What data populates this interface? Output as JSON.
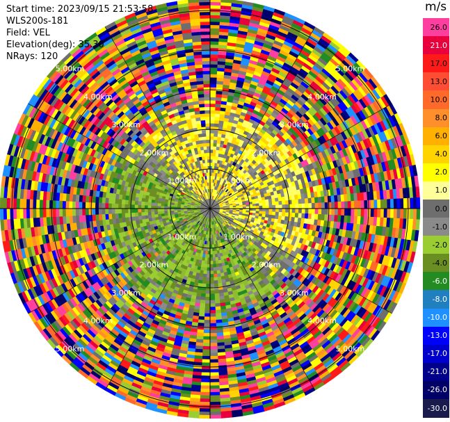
{
  "info": {
    "start_time": "Start time: 2023/09/15 21:53:58",
    "instrument": "WLS200s-181",
    "field": "Field: VEL",
    "elevation": "Elevation(deg): 35.30",
    "nrays": "NRays: 120"
  },
  "chart_data": {
    "type": "heatmap",
    "projection": "polar PPI",
    "field": "VEL",
    "nrays": 120,
    "range_labels": [
      "1.00km",
      "2.00km",
      "3.00km",
      "4.00km",
      "5.00km"
    ],
    "range_ring_km": [
      1,
      2,
      3,
      4,
      5
    ],
    "max_range_km": 5.3,
    "colorbar": {
      "unit": "m/s",
      "ticks": [
        "26.0",
        "21.0",
        "17.0",
        "13.0",
        "10.0",
        "8.0",
        "6.0",
        "4.0",
        "2.0",
        "1.0",
        "0.0",
        "-1.0",
        "-2.0",
        "-4.0",
        "-6.0",
        "-8.0",
        "-10.0",
        "-13.0",
        "-17.0",
        "-21.0",
        "-26.0",
        "-30.0"
      ],
      "colors": [
        "#ff3fa0",
        "#e8003c",
        "#ff1a1a",
        "#ff4d33",
        "#ff6a2a",
        "#ff8f2a",
        "#ffb000",
        "#ffd400",
        "#ffff00",
        "#ffff99",
        "#6e6e6e",
        "#8a8a8a",
        "#9acd32",
        "#6b8e23",
        "#228b22",
        "#1f7fbf",
        "#1e90ff",
        "#0000ff",
        "#0000cd",
        "#00008b",
        "#000066",
        "#1a1a4d"
      ],
      "label_colors": [
        "#000000",
        "#ffffff",
        "#000000",
        "#000000",
        "#000000",
        "#000000",
        "#000000",
        "#000000",
        "#000000",
        "#000000",
        "#000000",
        "#000000",
        "#000000",
        "#000000",
        "#ffffff",
        "#ffffff",
        "#ffffff",
        "#ffffff",
        "#ffffff",
        "#ffffff",
        "#ffffff",
        "#ffffff"
      ]
    },
    "pattern": {
      "inner_km": 2.4,
      "noise_km": 3.7,
      "positive_sector": "north-east",
      "negative_sector": "south-west",
      "colors": {
        "positive": [
          "#ffff00",
          "#ffd400",
          "#ffff66"
        ],
        "negative": [
          "#9acd32",
          "#6b8e23",
          "#8fbc2f"
        ],
        "strong_negative": "#228b22",
        "zero": [
          "#6e6e6e",
          "#8a8a8a",
          "#7c7c7c"
        ],
        "noise": [
          "#ff3fa0",
          "#e8003c",
          "#ff1a1a",
          "#ffb000",
          "#ffd400",
          "#ffff00",
          "#9acd32",
          "#6b8e23",
          "#228b22",
          "#0000ff",
          "#1e90ff",
          "#00008b",
          "#6e6e6e",
          "#ff6a2a",
          "#000066",
          "#ff8f2a"
        ]
      }
    }
  }
}
